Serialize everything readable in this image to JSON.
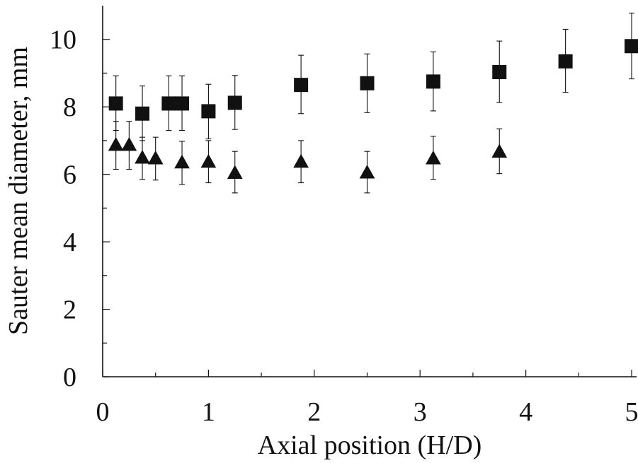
{
  "chart_data": {
    "type": "scatter",
    "title": "",
    "xlabel": "Axial position (H/D)",
    "ylabel": "Sauter mean diameter, mm",
    "xlim": [
      0,
      5
    ],
    "ylim": [
      0,
      11
    ],
    "x_ticks": [
      0,
      1,
      2,
      3,
      4,
      5
    ],
    "x_tick_labels": [
      "0",
      "1",
      "2",
      "3",
      "4",
      "5"
    ],
    "x_minor_ticks": [
      0.5,
      1.5,
      2.5,
      3.5,
      4.5
    ],
    "y_ticks": [
      0,
      2,
      4,
      6,
      8,
      10
    ],
    "y_tick_labels": [
      "0",
      "2",
      "4",
      "6",
      "8",
      "10"
    ],
    "y_minor_ticks": [
      1,
      3,
      5,
      7,
      9
    ],
    "grid": false,
    "series": [
      {
        "marker": "square",
        "color": "#111111",
        "points": [
          {
            "x": 0.125,
            "y": 8.1,
            "err_low": 7.3,
            "err_high": 8.92
          },
          {
            "x": 0.375,
            "y": 7.8,
            "err_low": 7.0,
            "err_high": 8.62
          },
          {
            "x": 0.625,
            "y": 8.1,
            "err_low": 7.3,
            "err_high": 8.92
          },
          {
            "x": 0.75,
            "y": 8.1,
            "err_low": 7.3,
            "err_high": 8.92
          },
          {
            "x": 1.0,
            "y": 7.87,
            "err_low": 7.05,
            "err_high": 8.67
          },
          {
            "x": 1.25,
            "y": 8.12,
            "err_low": 7.33,
            "err_high": 8.93
          },
          {
            "x": 1.875,
            "y": 8.65,
            "err_low": 7.8,
            "err_high": 9.53
          },
          {
            "x": 2.5,
            "y": 8.7,
            "err_low": 7.83,
            "err_high": 9.57
          },
          {
            "x": 3.125,
            "y": 8.75,
            "err_low": 7.88,
            "err_high": 9.63
          },
          {
            "x": 3.75,
            "y": 9.03,
            "err_low": 8.13,
            "err_high": 9.95
          },
          {
            "x": 4.375,
            "y": 9.35,
            "err_low": 8.43,
            "err_high": 10.3
          },
          {
            "x": 5.0,
            "y": 9.8,
            "err_low": 8.83,
            "err_high": 10.78
          }
        ]
      },
      {
        "marker": "triangle",
        "color": "#111111",
        "points": [
          {
            "x": 0.125,
            "y": 6.85,
            "err_low": 6.15,
            "err_high": 7.57
          },
          {
            "x": 0.25,
            "y": 6.85,
            "err_low": 6.15,
            "err_high": 7.57
          },
          {
            "x": 0.375,
            "y": 6.47,
            "err_low": 5.85,
            "err_high": 7.1
          },
          {
            "x": 0.5,
            "y": 6.45,
            "err_low": 5.83,
            "err_high": 7.1
          },
          {
            "x": 0.75,
            "y": 6.33,
            "err_low": 5.7,
            "err_high": 6.98
          },
          {
            "x": 1.0,
            "y": 6.35,
            "err_low": 5.75,
            "err_high": 7.0
          },
          {
            "x": 1.25,
            "y": 6.02,
            "err_low": 5.45,
            "err_high": 6.68
          },
          {
            "x": 1.875,
            "y": 6.35,
            "err_low": 5.75,
            "err_high": 7.0
          },
          {
            "x": 2.5,
            "y": 6.03,
            "err_low": 5.45,
            "err_high": 6.68
          },
          {
            "x": 3.125,
            "y": 6.45,
            "err_low": 5.85,
            "err_high": 7.13
          },
          {
            "x": 3.75,
            "y": 6.65,
            "err_low": 6.02,
            "err_high": 7.35
          }
        ]
      }
    ]
  }
}
